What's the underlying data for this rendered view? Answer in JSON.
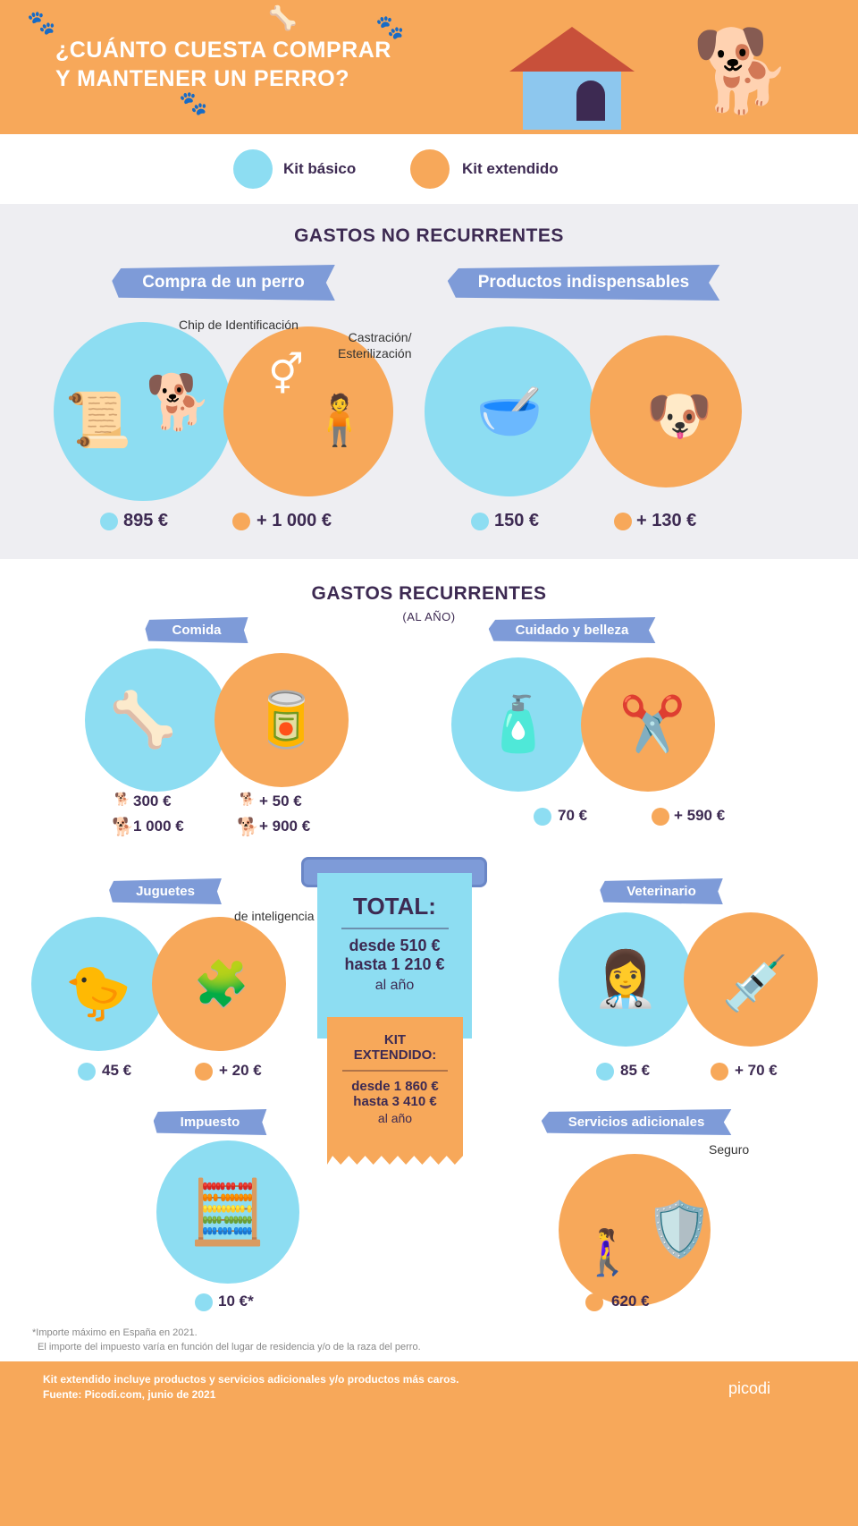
{
  "header": {
    "title_line1": "¿CUÁNTO CUESTA COMPRAR",
    "title_line2": "Y MANTENER UN PERRO?"
  },
  "legend": [
    {
      "label": "Kit básico",
      "color": "#8dddf2"
    },
    {
      "label": "Kit extendido",
      "color": "#f7a85a"
    }
  ],
  "non_recurring": {
    "title": "GASTOS NO RECURRENTES",
    "purchase": {
      "banner": "Compra de un perro",
      "chip_label": "Chip de Identificación",
      "castration_label_1": "Castración/",
      "castration_label_2": "Esterilización",
      "basic": "895 €",
      "extended": "+ 1 000 €"
    },
    "products": {
      "banner": "Productos indispensables",
      "basic": "150 €",
      "extended": "+ 130 €"
    }
  },
  "recurring": {
    "title": "GASTOS RECURRENTES",
    "subtitle": "(AL AÑO)",
    "food": {
      "banner": "Comida",
      "basic_small": "300 €",
      "basic_large": "1 000 €",
      "extended_small": "+ 50 €",
      "extended_large": "+ 900 €"
    },
    "care": {
      "banner": "Cuidado y belleza",
      "basic": "70 €",
      "extended": "+ 590 €"
    },
    "toys": {
      "banner": "Juguetes",
      "intelligence_label": "de inteligencia",
      "basic": "45 €",
      "extended": "+ 20 €"
    },
    "vet": {
      "banner": "Veterinario",
      "basic": "85 €",
      "extended": "+ 70 €"
    },
    "tax": {
      "banner": "Impuesto",
      "basic": "10 €*"
    },
    "services": {
      "banner": "Servicios adicionales",
      "insurance_label": "Seguro",
      "extended": "620 €"
    }
  },
  "total": {
    "title": "TOTAL:",
    "from": "desde 510 €",
    "to": "hasta 1 210 €",
    "period": "al año",
    "ext_title_1": "KIT",
    "ext_title_2": "EXTENDIDO:",
    "ext_from": "desde 1 860 €",
    "ext_to": "hasta 3 410 €",
    "ext_period": "al año"
  },
  "footnote": {
    "line1": "*Importe máximo en España en 2021.",
    "line2": "El importe del impuesto varía en función del lugar de residencia y/o de la raza del perro."
  },
  "footer": {
    "line1": "Kit extendido incluye productos y servicios adicionales y/o productos más caros.",
    "line2": "Fuente: Picodi.com, junio de 2021",
    "logo": "picodi"
  }
}
